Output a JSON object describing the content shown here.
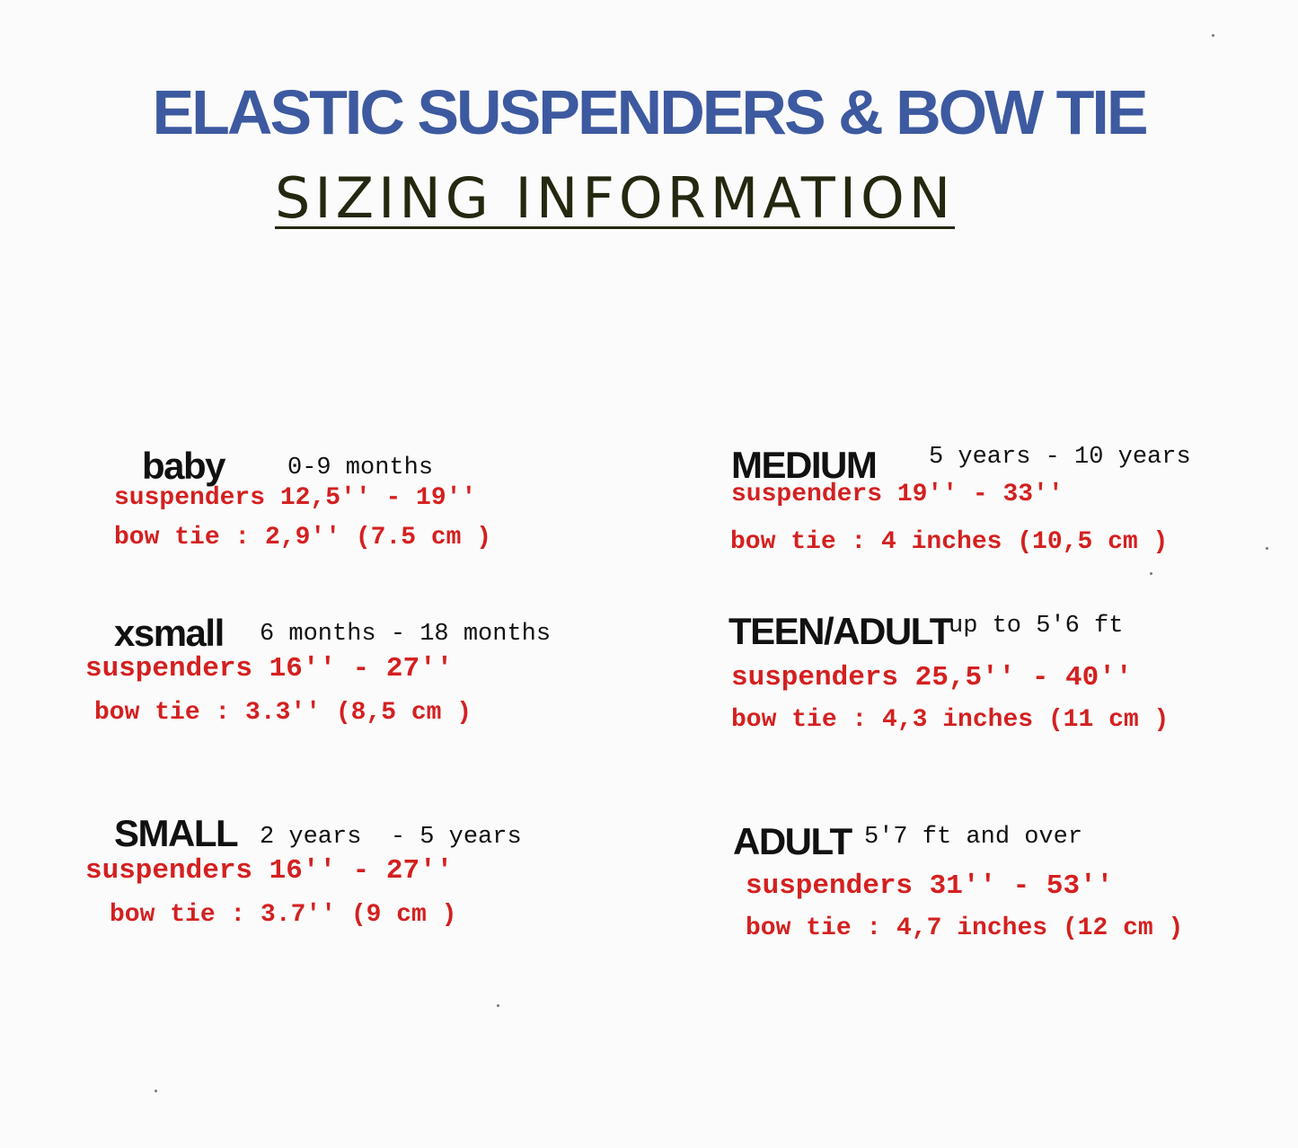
{
  "header": {
    "title": "ELASTIC SUSPENDERS & BOW TIE",
    "subtitle": "SIZING INFORMATION"
  },
  "colors": {
    "title": "#3d5aa0",
    "subtitle": "#23280f",
    "measurements": "#d42020"
  },
  "sizes": [
    {
      "name": "baby",
      "age": "0-9 months",
      "suspenders": "suspenders 12,5'' - 19''",
      "bow_tie": "bow tie : 2,9'' (7.5 cm )"
    },
    {
      "name": "xsmall",
      "age": "6 months - 18 months",
      "suspenders": "suspenders 16'' - 27''",
      "bow_tie": "bow tie : 3.3'' (8,5 cm )"
    },
    {
      "name": "SMALL",
      "age": "2 years  - 5 years",
      "suspenders": "suspenders 16'' - 27''",
      "bow_tie": "bow tie : 3.7'' (9 cm )"
    },
    {
      "name": "MEDIUM",
      "age": "5 years - 10 years",
      "suspenders": "suspenders 19'' - 33''",
      "bow_tie": "bow tie : 4 inches (10,5 cm )"
    },
    {
      "name": "TEEN/ADULT",
      "age": "up to 5'6 ft",
      "suspenders": "suspenders 25,5'' - 40''",
      "bow_tie": "bow tie : 4,3 inches (11 cm )"
    },
    {
      "name": "ADULT",
      "age": "5'7 ft and over",
      "suspenders": "suspenders 31'' - 53''",
      "bow_tie": "bow tie : 4,7 inches (12 cm )"
    }
  ]
}
